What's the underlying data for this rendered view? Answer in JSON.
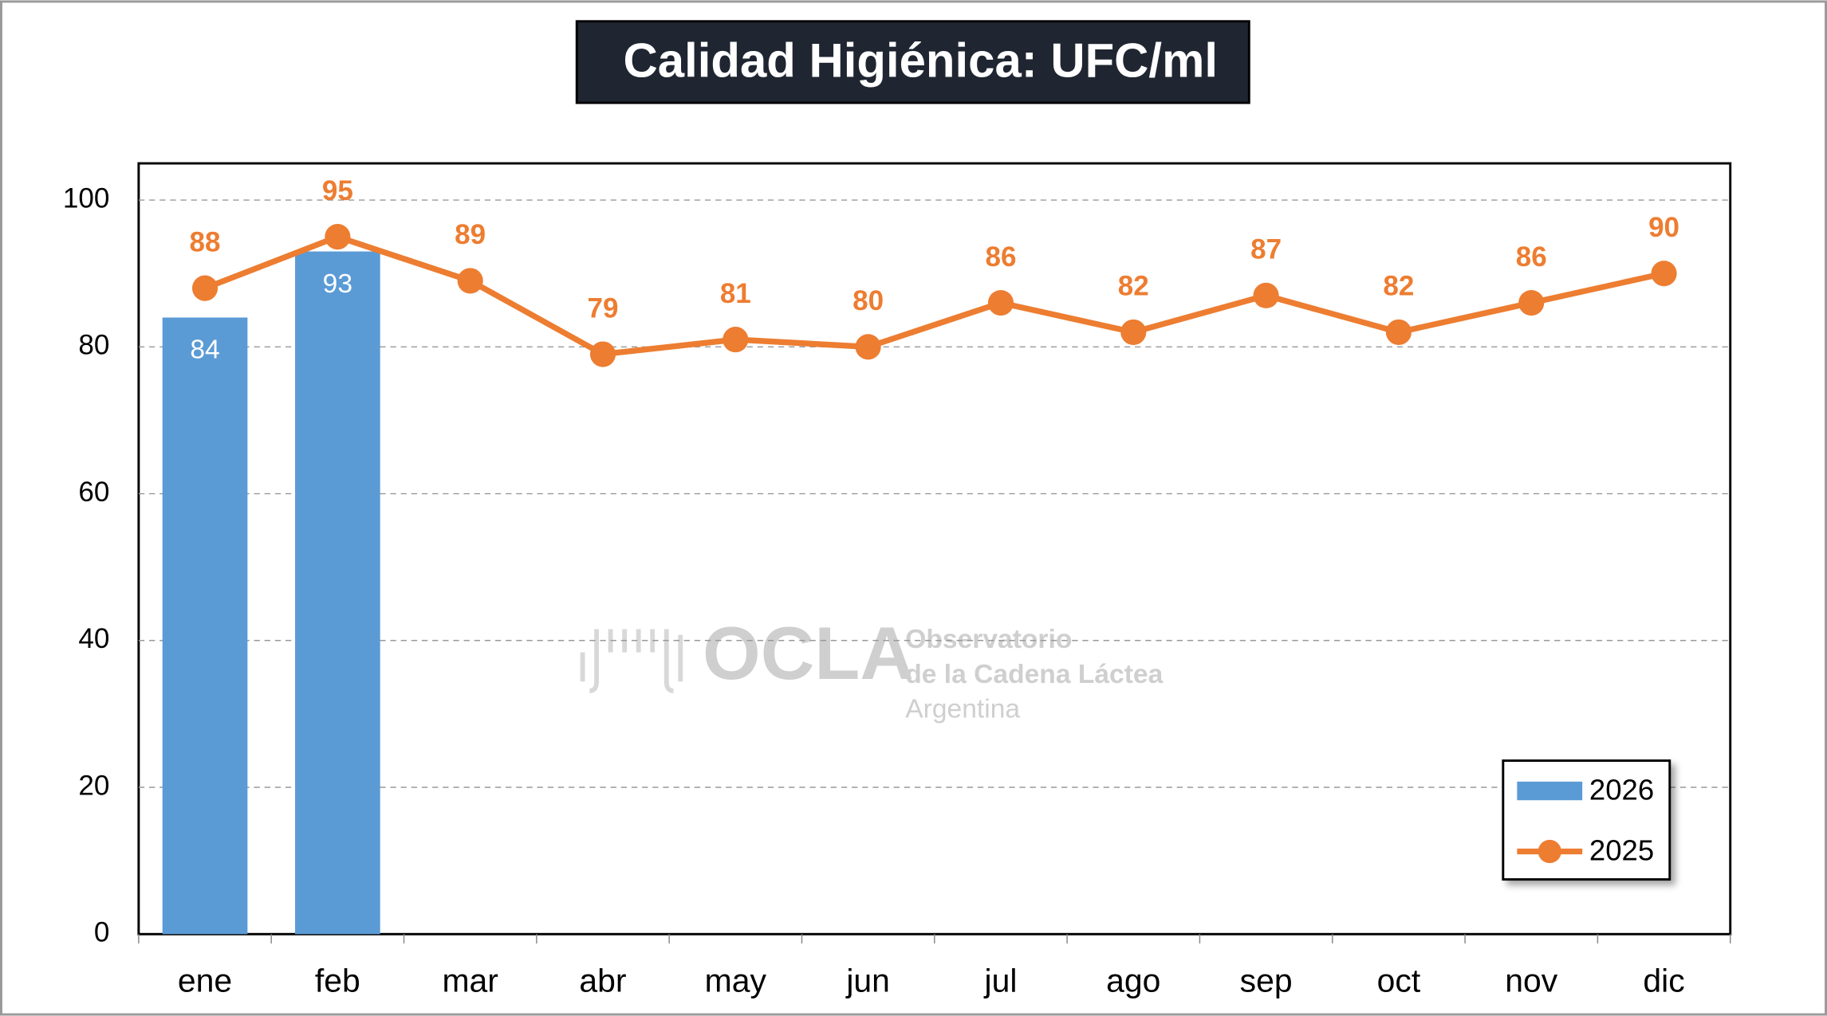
{
  "chart_data": {
    "type": "bar_line",
    "title": "Calidad Higiénica: UFC/ml",
    "watermark": {
      "logo": "OCLA",
      "lines": [
        "Observatorio",
        "de la Cadena Láctea",
        "Argentina"
      ]
    },
    "categories": [
      "ene",
      "feb",
      "mar",
      "abr",
      "may",
      "jun",
      "jul",
      "ago",
      "sep",
      "oct",
      "nov",
      "dic"
    ],
    "series": [
      {
        "name": "2026",
        "type": "bar",
        "color": "#5b9bd5",
        "values": [
          84,
          93,
          null,
          null,
          null,
          null,
          null,
          null,
          null,
          null,
          null,
          null
        ]
      },
      {
        "name": "2025",
        "type": "line",
        "color": "#ed7d31",
        "values": [
          88,
          95,
          89,
          79,
          81,
          80,
          86,
          82,
          87,
          82,
          86,
          90
        ]
      }
    ],
    "ylim": [
      0,
      105
    ],
    "yticks": [
      0,
      20,
      40,
      60,
      80,
      100
    ],
    "grid": true,
    "legend": "lower right"
  }
}
